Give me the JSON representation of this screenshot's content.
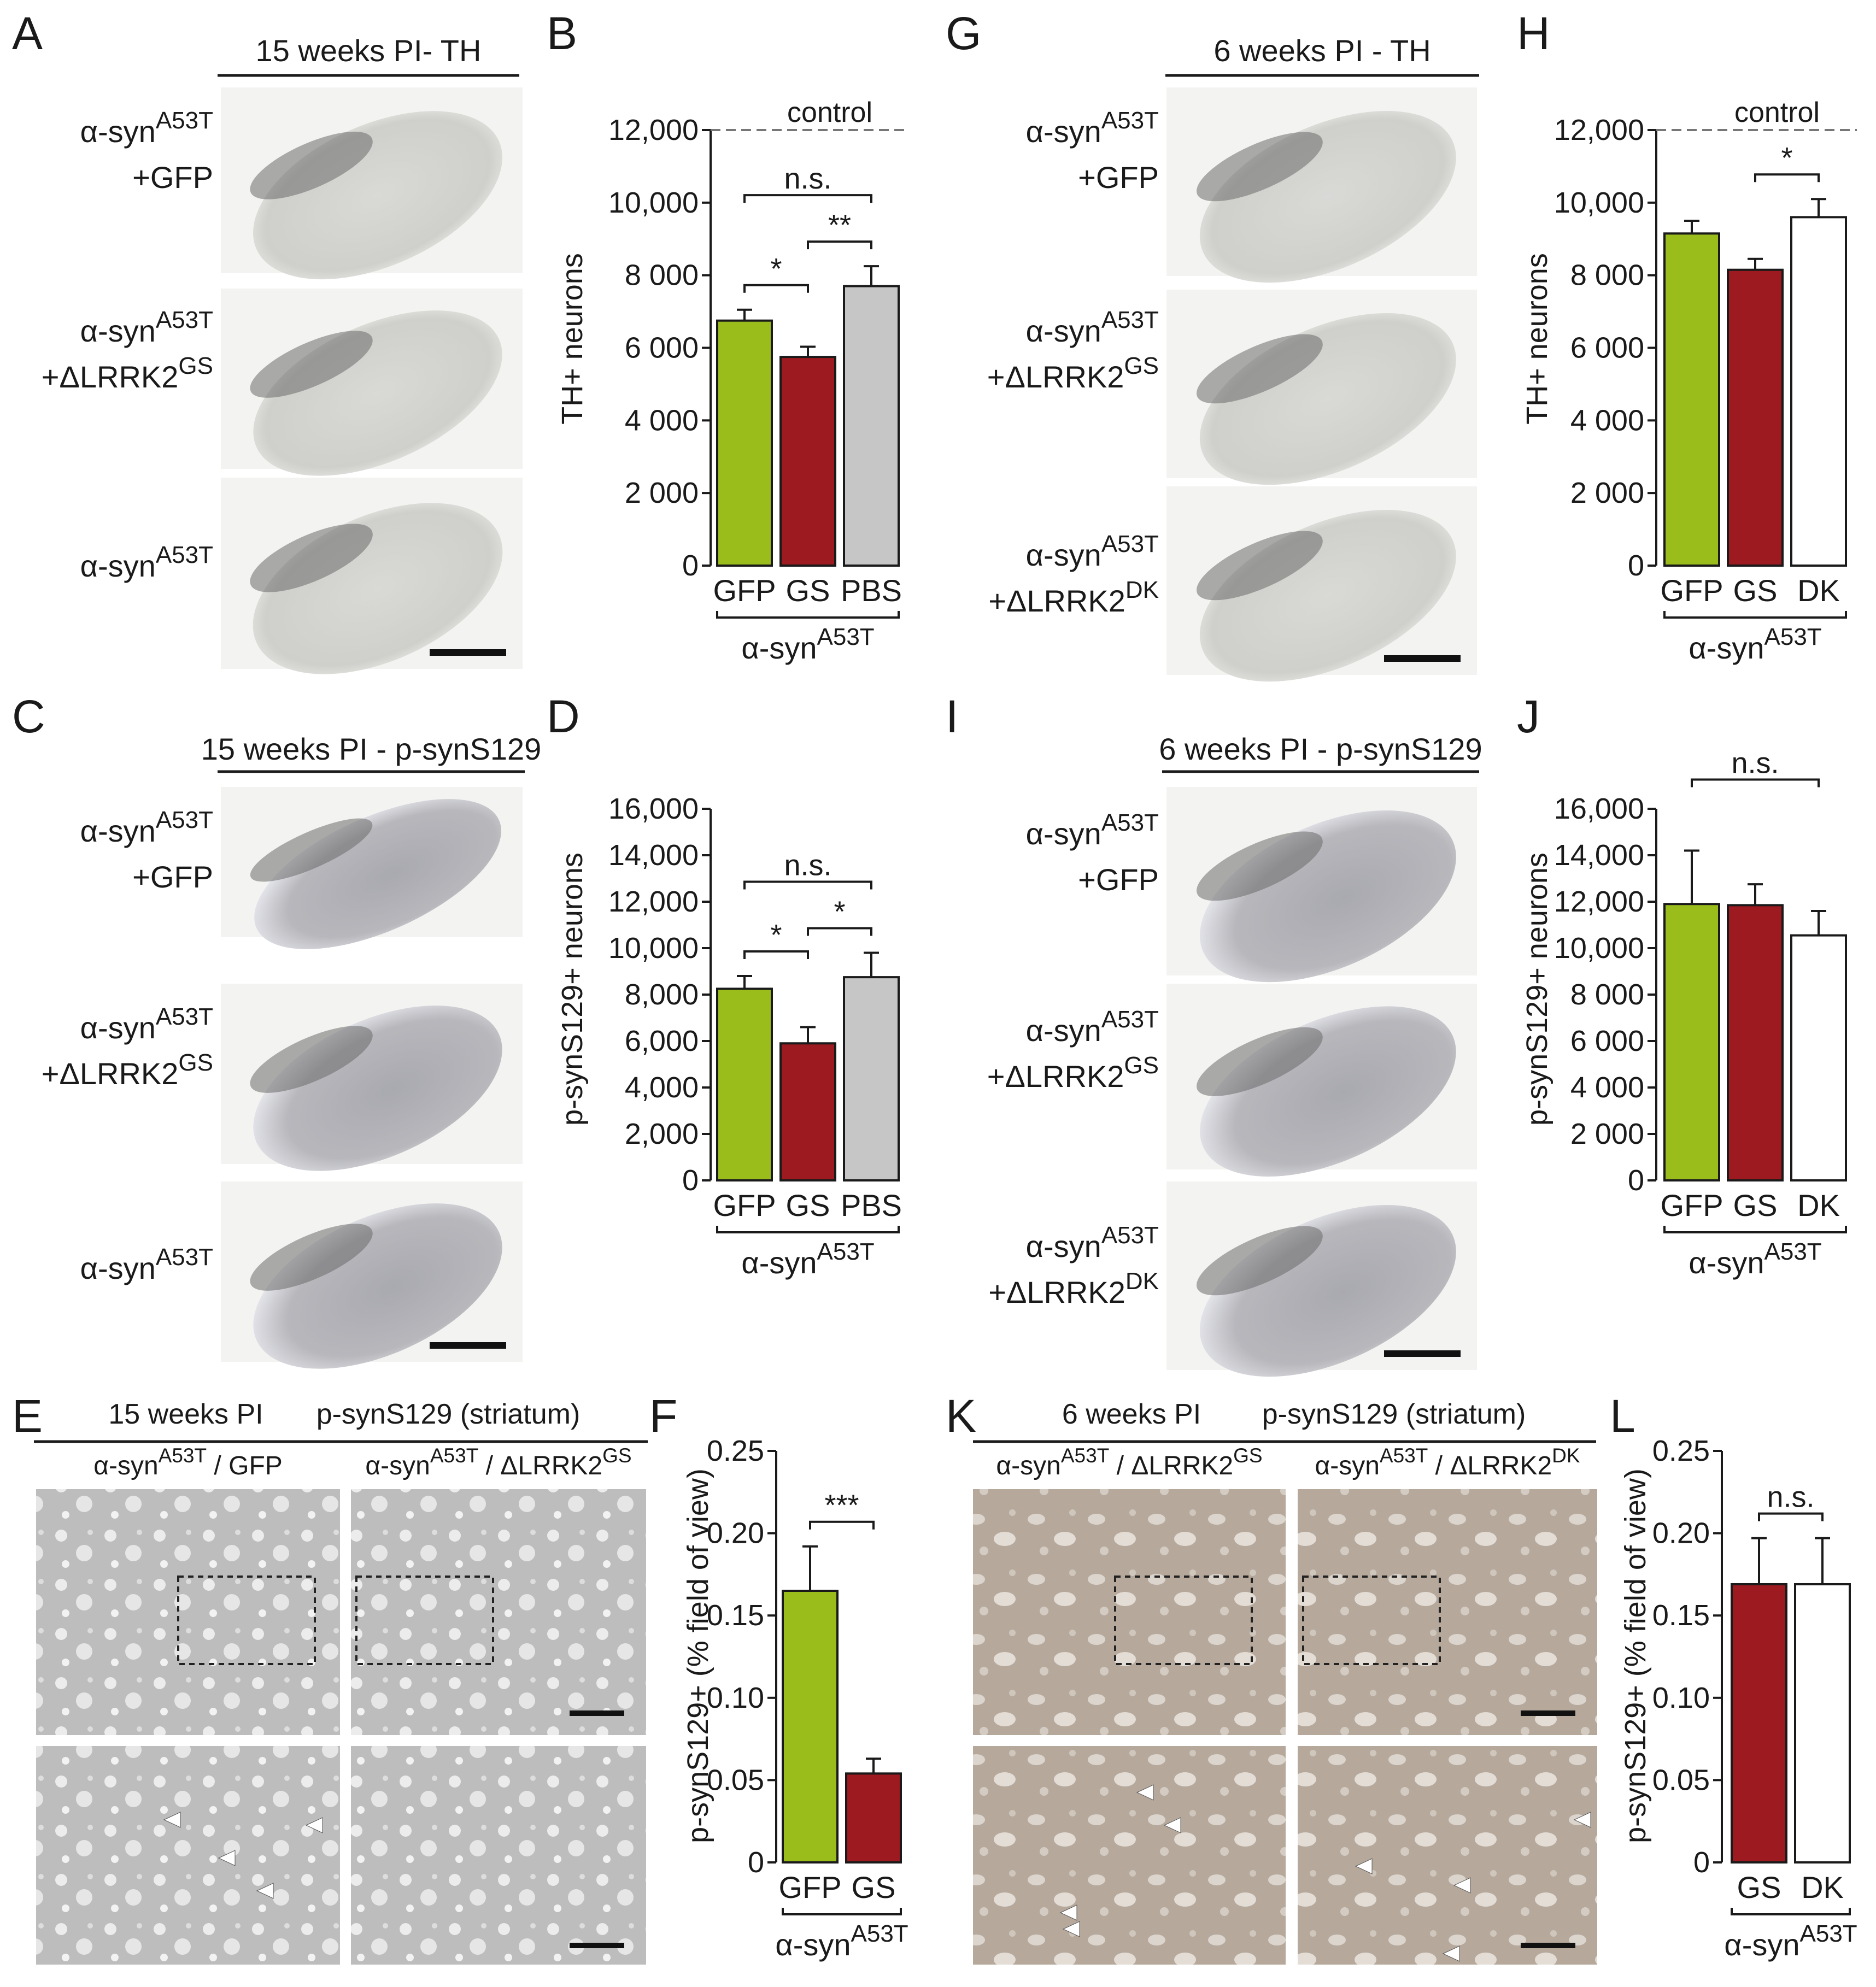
{
  "panels": {
    "A": {
      "letter": "A",
      "title": "15 weeks PI- TH",
      "rows": [
        {
          "name": "α-syn",
          "sup": "A53T",
          "line2": "+GFP",
          "sup2": ""
        },
        {
          "name": "α-syn",
          "sup": "A53T",
          "line2": "+ΔLRRK2",
          "sup2": "GS"
        },
        {
          "name": "α-syn",
          "sup": "A53T",
          "line2": "",
          "sup2": ""
        }
      ]
    },
    "C": {
      "letter": "C",
      "title": "15 weeks PI - p-synS129",
      "rows": [
        {
          "name": "α-syn",
          "sup": "A53T",
          "line2": "+GFP",
          "sup2": ""
        },
        {
          "name": "α-syn",
          "sup": "A53T",
          "line2": "+ΔLRRK2",
          "sup2": "GS"
        },
        {
          "name": "α-syn",
          "sup": "A53T",
          "line2": "",
          "sup2": ""
        }
      ]
    },
    "G": {
      "letter": "G",
      "title": "6 weeks PI - TH",
      "rows": [
        {
          "name": "α-syn",
          "sup": "A53T",
          "line2": "+GFP",
          "sup2": ""
        },
        {
          "name": "α-syn",
          "sup": "A53T",
          "line2": "+ΔLRRK2",
          "sup2": "GS"
        },
        {
          "name": "α-syn",
          "sup": "A53T",
          "line2": "+ΔLRRK2",
          "sup2": "DK"
        }
      ]
    },
    "I": {
      "letter": "I",
      "title": "6 weeks PI - p-synS129",
      "rows": [
        {
          "name": "α-syn",
          "sup": "A53T",
          "line2": "+GFP",
          "sup2": ""
        },
        {
          "name": "α-syn",
          "sup": "A53T",
          "line2": "+ΔLRRK2",
          "sup2": "GS"
        },
        {
          "name": "α-syn",
          "sup": "A53T",
          "line2": "+ΔLRRK2",
          "sup2": "DK"
        }
      ]
    },
    "E": {
      "letter": "E",
      "title_left": "15 weeks PI",
      "title_right": "p-synS129 (striatum)",
      "col1": {
        "name": "α-syn",
        "sup": "A53T",
        "rest": " / GFP",
        "sup2": ""
      },
      "col2": {
        "name": "α-syn",
        "sup": "A53T",
        "rest": " / ΔLRRK2",
        "sup2": "GS"
      }
    },
    "K": {
      "letter": "K",
      "title_left": "6 weeks PI",
      "title_right": "p-synS129 (striatum)",
      "col1": {
        "name": "α-syn",
        "sup": "A53T",
        "rest": " / ΔLRRK2",
        "sup2": "GS"
      },
      "col2": {
        "name": "α-syn",
        "sup": "A53T",
        "rest": " / ΔLRRK2",
        "sup2": "DK"
      }
    }
  },
  "colors": {
    "GFP": "#9bbd1c",
    "GS": "#9c1a20",
    "PBS": "#c6c6c6",
    "DK": "#ffffff"
  },
  "chart_data": [
    {
      "id": "B",
      "letter": "B",
      "type": "bar",
      "ylabel": "TH+ neurons",
      "categories": [
        "GFP",
        "GS",
        "PBS"
      ],
      "values": [
        6750,
        5750,
        7700
      ],
      "errors": [
        300,
        280,
        550
      ],
      "yticks": [
        0,
        2000,
        4000,
        6000,
        8000,
        10000,
        12000
      ],
      "ytick_labels": [
        "0",
        "2 000",
        "4 000",
        "6 000",
        "8 000",
        "10,000",
        "12,000"
      ],
      "ylim": [
        0,
        12000
      ],
      "reference_line": {
        "value": 12000,
        "label": "control"
      },
      "group_label": {
        "name": "α-syn",
        "sup": "A53T"
      },
      "significance": [
        {
          "from": 0,
          "to": 1,
          "label": "*"
        },
        {
          "from": 1,
          "to": 2,
          "label": "**"
        },
        {
          "from": 0,
          "to": 2,
          "label": "n.s."
        }
      ]
    },
    {
      "id": "D",
      "letter": "D",
      "type": "bar",
      "ylabel": "p-synS129+ neurons",
      "categories": [
        "GFP",
        "GS",
        "PBS"
      ],
      "values": [
        8250,
        5900,
        8750
      ],
      "errors": [
        550,
        700,
        1050
      ],
      "yticks": [
        0,
        2000,
        4000,
        6000,
        8000,
        10000,
        12000,
        14000,
        16000
      ],
      "ytick_labels": [
        "0",
        "2,000",
        "4,000",
        "6,000",
        "8,000",
        "10,000",
        "12,000",
        "14,000",
        "16,000"
      ],
      "ylim": [
        0,
        16000
      ],
      "group_label": {
        "name": "α-syn",
        "sup": "A53T"
      },
      "significance": [
        {
          "from": 0,
          "to": 1,
          "label": "*"
        },
        {
          "from": 1,
          "to": 2,
          "label": "*"
        },
        {
          "from": 0,
          "to": 2,
          "label": "n.s."
        }
      ]
    },
    {
      "id": "H",
      "letter": "H",
      "type": "bar",
      "ylabel": "TH+ neurons",
      "categories": [
        "GFP",
        "GS",
        "DK"
      ],
      "values": [
        9150,
        8150,
        9600
      ],
      "errors": [
        350,
        300,
        500
      ],
      "yticks": [
        0,
        2000,
        4000,
        6000,
        8000,
        10000,
        12000
      ],
      "ytick_labels": [
        "0",
        "2 000",
        "4 000",
        "6 000",
        "8 000",
        "10,000",
        "12,000"
      ],
      "ylim": [
        0,
        12000
      ],
      "reference_line": {
        "value": 12000,
        "label": "control"
      },
      "group_label": {
        "name": "α-syn",
        "sup": "A53T"
      },
      "significance": [
        {
          "from": 1,
          "to": 2,
          "label": "*"
        }
      ]
    },
    {
      "id": "J",
      "letter": "J",
      "type": "bar",
      "ylabel": "p-synS129+ neurons",
      "categories": [
        "GFP",
        "GS",
        "DK"
      ],
      "values": [
        11900,
        11850,
        10550
      ],
      "errors": [
        2300,
        900,
        1050
      ],
      "yticks": [
        0,
        2000,
        4000,
        6000,
        8000,
        10000,
        12000,
        14000,
        16000
      ],
      "ytick_labels": [
        "0",
        "2 000",
        "4 000",
        "6 000",
        "8 000",
        "10,000",
        "12,000",
        "14,000",
        "16,000"
      ],
      "ylim": [
        0,
        16000
      ],
      "group_label": {
        "name": "α-syn",
        "sup": "A53T"
      },
      "significance": [
        {
          "from": 0,
          "to": 2,
          "label": "n.s."
        }
      ]
    },
    {
      "id": "F",
      "letter": "F",
      "type": "bar",
      "ylabel": "p-synS129+ (% field of view)",
      "categories": [
        "GFP",
        "GS"
      ],
      "values": [
        0.165,
        0.054
      ],
      "errors": [
        0.027,
        0.009
      ],
      "yticks": [
        0,
        0.05,
        0.1,
        0.15,
        0.2,
        0.25
      ],
      "ytick_labels": [
        "0",
        "0.05",
        "0.10",
        "0.15",
        "0.20",
        "0.25"
      ],
      "ylim": [
        0,
        0.25
      ],
      "group_label": {
        "name": "α-syn",
        "sup": "A53T"
      },
      "significance": [
        {
          "from": 0,
          "to": 1,
          "label": "***"
        }
      ]
    },
    {
      "id": "L",
      "letter": "L",
      "type": "bar",
      "ylabel": "p-synS129+ (% field of view)",
      "categories": [
        "GS",
        "DK"
      ],
      "values": [
        0.169,
        0.169
      ],
      "errors": [
        0.028,
        0.028
      ],
      "yticks": [
        0,
        0.05,
        0.1,
        0.15,
        0.2,
        0.25
      ],
      "ytick_labels": [
        "0",
        "0.05",
        "0.10",
        "0.15",
        "0.20",
        "0.25"
      ],
      "ylim": [
        0,
        0.25
      ],
      "group_label": {
        "name": "α-syn",
        "sup": "A53T"
      },
      "significance": [
        {
          "from": 0,
          "to": 1,
          "label": "n.s."
        }
      ]
    }
  ]
}
